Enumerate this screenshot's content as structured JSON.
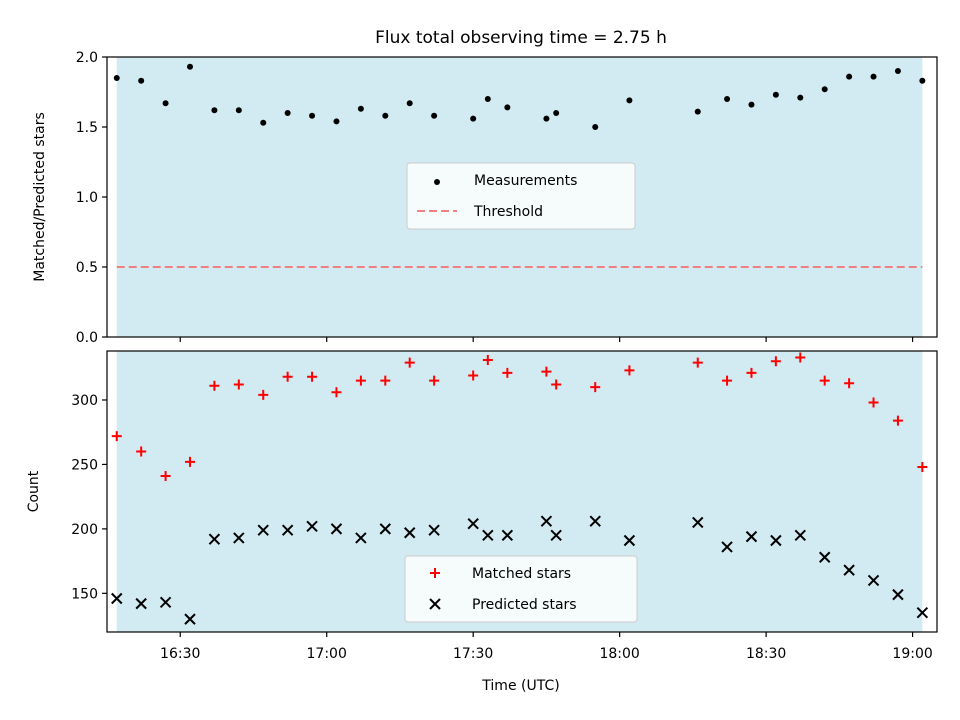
{
  "chart_data": {
    "title": "Flux total observing time = 2.75 h",
    "xlabel": "Time (UTC)",
    "x_ticks": [
      "16:30",
      "17:00",
      "17:30",
      "18:00",
      "18:30",
      "19:00"
    ],
    "x_range": [
      "16:15",
      "19:05"
    ],
    "shaded_interval": [
      "16:17",
      "19:02"
    ],
    "colors": {
      "shade": "#add8e6",
      "threshold": "#f08080",
      "matched": "#ff0000",
      "predicted": "#000000",
      "measurements": "#000000"
    },
    "panels": [
      {
        "type": "scatter",
        "ylabel": "Matched/Predicted stars",
        "ylim": [
          0.0,
          2.0
        ],
        "y_ticks": [
          "0.0",
          "0.5",
          "1.0",
          "1.5",
          "2.0"
        ],
        "legend": {
          "placement": "center",
          "entries": [
            "Measurements",
            "Threshold"
          ]
        },
        "threshold": 0.5,
        "series": [
          {
            "name": "Measurements",
            "marker": "dot",
            "x": [
              "16:17",
              "16:22",
              "16:27",
              "16:32",
              "16:37",
              "16:42",
              "16:47",
              "16:52",
              "16:57",
              "17:02",
              "17:07",
              "17:12",
              "17:17",
              "17:22",
              "17:30",
              "17:33",
              "17:37",
              "17:45",
              "17:47",
              "17:55",
              "18:02",
              "18:16",
              "18:22",
              "18:27",
              "18:32",
              "18:37",
              "18:42",
              "18:47",
              "18:52",
              "18:57",
              "19:02"
            ],
            "y": [
              1.85,
              1.83,
              1.67,
              1.93,
              1.62,
              1.62,
              1.53,
              1.6,
              1.58,
              1.54,
              1.63,
              1.58,
              1.67,
              1.58,
              1.56,
              1.7,
              1.64,
              1.56,
              1.6,
              1.5,
              1.69,
              1.61,
              1.7,
              1.66,
              1.73,
              1.71,
              1.77,
              1.86,
              1.86,
              1.9,
              1.83
            ]
          }
        ]
      },
      {
        "type": "scatter",
        "ylabel": "Count",
        "ylim": [
          120,
          338
        ],
        "y_ticks": [
          "150",
          "200",
          "250",
          "300"
        ],
        "legend": {
          "placement": "lower center",
          "entries": [
            "Matched stars",
            "Predicted stars"
          ]
        },
        "series": [
          {
            "name": "Matched stars",
            "marker": "plus",
            "x": [
              "16:17",
              "16:22",
              "16:27",
              "16:32",
              "16:37",
              "16:42",
              "16:47",
              "16:52",
              "16:57",
              "17:02",
              "17:07",
              "17:12",
              "17:17",
              "17:22",
              "17:30",
              "17:33",
              "17:37",
              "17:45",
              "17:47",
              "17:55",
              "18:02",
              "18:16",
              "18:22",
              "18:27",
              "18:32",
              "18:37",
              "18:42",
              "18:47",
              "18:52",
              "18:57",
              "19:02"
            ],
            "y": [
              272,
              260,
              241,
              252,
              311,
              312,
              304,
              318,
              318,
              306,
              315,
              315,
              329,
              315,
              319,
              331,
              321,
              322,
              312,
              310,
              323,
              329,
              315,
              321,
              330,
              333,
              315,
              313,
              298,
              284,
              248
            ]
          },
          {
            "name": "Predicted stars",
            "marker": "x",
            "x": [
              "16:17",
              "16:22",
              "16:27",
              "16:32",
              "16:37",
              "16:42",
              "16:47",
              "16:52",
              "16:57",
              "17:02",
              "17:07",
              "17:12",
              "17:17",
              "17:22",
              "17:30",
              "17:33",
              "17:37",
              "17:45",
              "17:47",
              "17:55",
              "18:02",
              "18:16",
              "18:22",
              "18:27",
              "18:32",
              "18:37",
              "18:42",
              "18:47",
              "18:52",
              "18:57",
              "19:02"
            ],
            "y": [
              146,
              142,
              143,
              130,
              192,
              193,
              199,
              199,
              202,
              200,
              193,
              200,
              197,
              199,
              204,
              195,
              195,
              206,
              195,
              206,
              191,
              205,
              186,
              194,
              191,
              195,
              178,
              168,
              160,
              149,
              135
            ]
          }
        ]
      }
    ]
  }
}
